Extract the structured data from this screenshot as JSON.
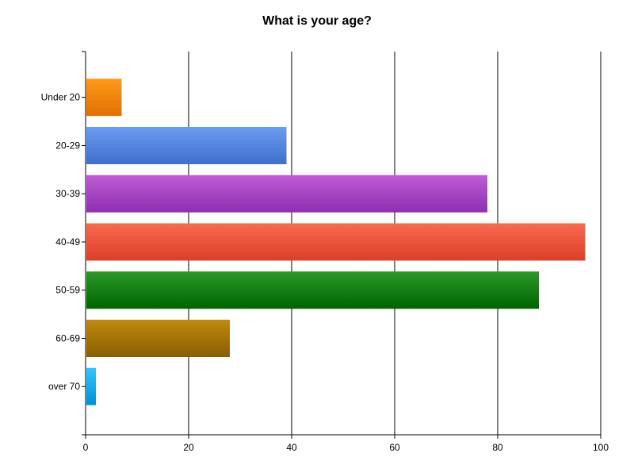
{
  "chart_data": {
    "type": "bar",
    "orientation": "horizontal",
    "title": "What is your age?",
    "xlabel": "",
    "ylabel": "",
    "categories": [
      "Under 20",
      "20-29",
      "30-39",
      "40-49",
      "50-59",
      "60-69",
      "over 70"
    ],
    "values": [
      7,
      39,
      78,
      97,
      88,
      28,
      2
    ],
    "xlim": [
      0,
      100
    ],
    "xticks": [
      0,
      20,
      40,
      60,
      80,
      100
    ],
    "grid": "vertical",
    "legend": "none",
    "colors": [
      [
        "#ff9a1a",
        "#e07000"
      ],
      [
        "#6a9cf2",
        "#3f6fcd"
      ],
      [
        "#c15bd6",
        "#8c2fb0"
      ],
      [
        "#f96a4e",
        "#dc3f28"
      ],
      [
        "#2a9a2a",
        "#006400"
      ],
      [
        "#c08a10",
        "#8a5e00"
      ],
      [
        "#30c6ff",
        "#0090d8"
      ]
    ]
  }
}
